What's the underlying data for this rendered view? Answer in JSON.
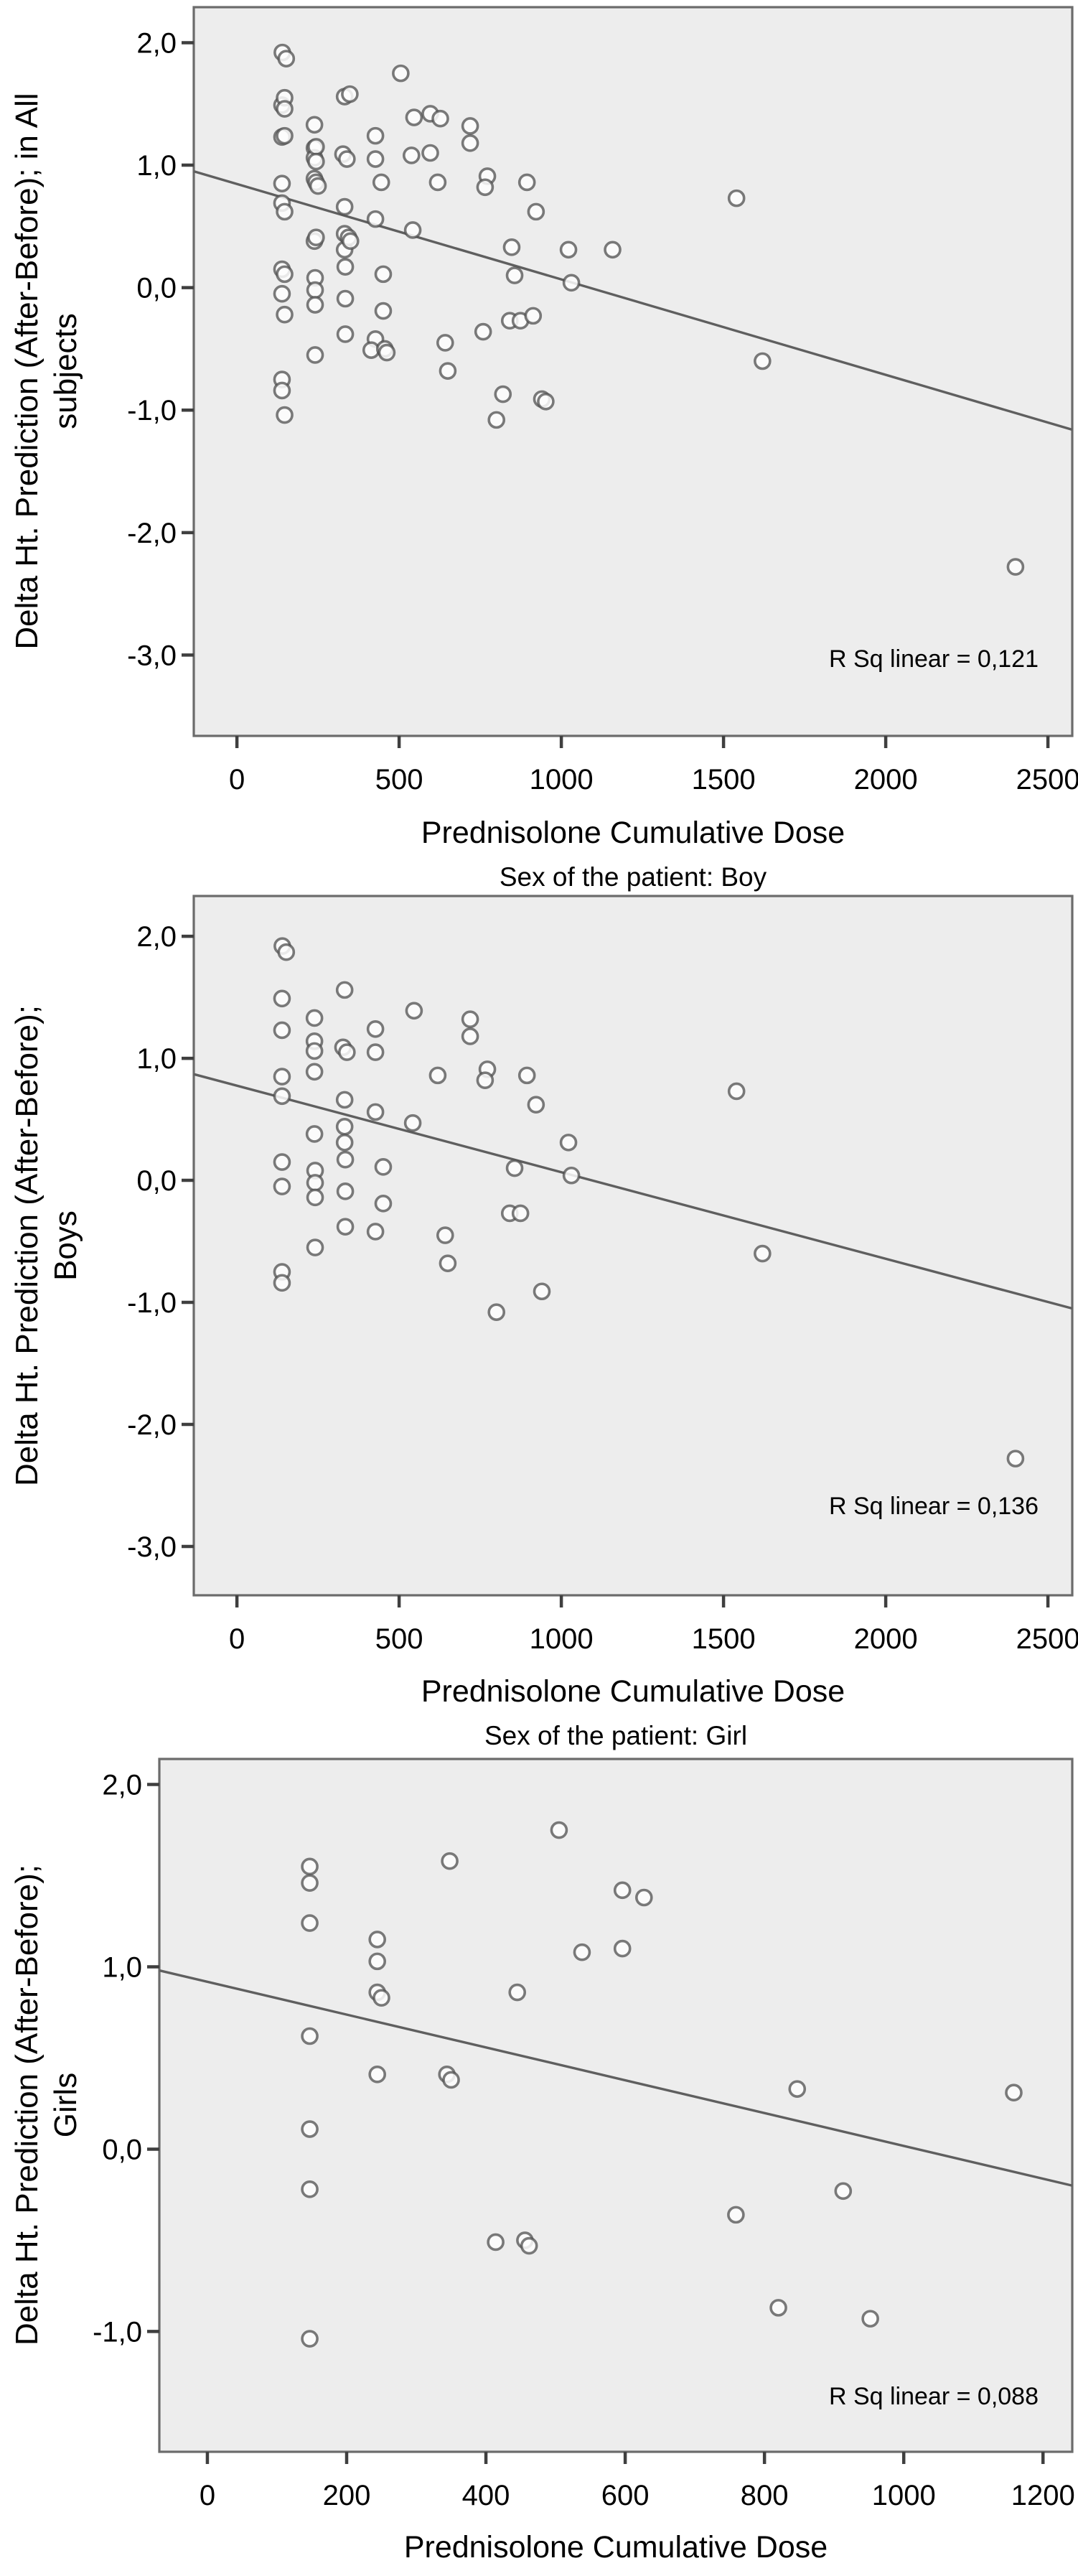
{
  "figure": {
    "x_axis_title": "Prednisolone Cumulative Dose",
    "marker_color": "#4f4f4f",
    "trend_color": "#5f5f5f",
    "plot_bg": "#ededed",
    "frame_color": "#6b6b6b"
  },
  "chart_data": [
    {
      "type": "scatter",
      "title": "",
      "ylabel_lines": [
        "Delta Ht. Prediction (After-Before); in All",
        "subjects"
      ],
      "xlabel": "Prednisolone Cumulative Dose",
      "r_sq_label": "R Sq linear = 0,121",
      "xlim": [
        -133,
        2575
      ],
      "ylim": [
        -3.66,
        2.29
      ],
      "x_ticks": [
        0,
        500,
        1000,
        1500,
        2000,
        2500
      ],
      "x_tick_labels": [
        "0",
        "500",
        "1000",
        "1500",
        "2000",
        "2500"
      ],
      "y_ticks": [
        2,
        1,
        0,
        -1,
        -2,
        -3
      ],
      "y_tick_labels": [
        "2,0",
        "1,0",
        "0,0",
        "-1,0",
        "-2,0",
        "-3,0"
      ],
      "trendline": {
        "x1": -133,
        "y1": 0.95,
        "x2": 2575,
        "y2": -1.16,
        "intercept": 0.85,
        "slope": -0.00078
      },
      "points": [
        [
          140,
          1.92
        ],
        [
          152,
          1.87
        ],
        [
          139,
          1.49
        ],
        [
          332,
          1.56
        ],
        [
          139,
          1.23
        ],
        [
          239,
          1.33
        ],
        [
          546,
          1.39
        ],
        [
          427,
          1.24
        ],
        [
          719,
          1.32
        ],
        [
          719,
          1.18
        ],
        [
          239,
          1.14
        ],
        [
          239,
          1.06
        ],
        [
          327,
          1.09
        ],
        [
          339,
          1.05
        ],
        [
          427,
          1.05
        ],
        [
          239,
          0.89
        ],
        [
          619,
          0.86
        ],
        [
          772,
          0.91
        ],
        [
          765,
          0.82
        ],
        [
          139,
          0.85
        ],
        [
          139,
          0.69
        ],
        [
          332,
          0.66
        ],
        [
          427,
          0.56
        ],
        [
          542,
          0.47
        ],
        [
          239,
          0.38
        ],
        [
          332,
          0.44
        ],
        [
          332,
          0.31
        ],
        [
          894,
          0.86
        ],
        [
          922,
          0.62
        ],
        [
          1022,
          0.31
        ],
        [
          856,
          0.1
        ],
        [
          1031,
          0.04
        ],
        [
          1540,
          0.73
        ],
        [
          139,
          0.15
        ],
        [
          139,
          -0.05
        ],
        [
          241,
          0.08
        ],
        [
          241,
          -0.02
        ],
        [
          241,
          -0.14
        ],
        [
          334,
          0.17
        ],
        [
          334,
          -0.09
        ],
        [
          451,
          0.11
        ],
        [
          451,
          -0.19
        ],
        [
          334,
          -0.38
        ],
        [
          427,
          -0.42
        ],
        [
          241,
          -0.55
        ],
        [
          139,
          -0.75
        ],
        [
          139,
          -0.84
        ],
        [
          642,
          -0.45
        ],
        [
          650,
          -0.68
        ],
        [
          841,
          -0.27
        ],
        [
          874,
          -0.27
        ],
        [
          940,
          -0.91
        ],
        [
          800,
          -1.08
        ],
        [
          1620,
          -0.6
        ],
        [
          2400,
          -2.28
        ],
        [
          147,
          1.55
        ],
        [
          147,
          1.46
        ],
        [
          147,
          1.24
        ],
        [
          244,
          1.15
        ],
        [
          244,
          1.03
        ],
        [
          244,
          0.86
        ],
        [
          250,
          0.83
        ],
        [
          348,
          1.58
        ],
        [
          445,
          0.86
        ],
        [
          147,
          0.62
        ],
        [
          244,
          0.41
        ],
        [
          344,
          0.41
        ],
        [
          350,
          0.38
        ],
        [
          147,
          0.11
        ],
        [
          505,
          1.75
        ],
        [
          596,
          1.42
        ],
        [
          627,
          1.38
        ],
        [
          538,
          1.08
        ],
        [
          596,
          1.1
        ],
        [
          847,
          0.33
        ],
        [
          1158,
          0.31
        ],
        [
          147,
          -0.22
        ],
        [
          414,
          -0.51
        ],
        [
          456,
          -0.5
        ],
        [
          462,
          -0.53
        ],
        [
          147,
          -1.04
        ],
        [
          913,
          -0.23
        ],
        [
          759,
          -0.36
        ],
        [
          820,
          -0.87
        ],
        [
          952,
          -0.93
        ]
      ]
    },
    {
      "type": "scatter",
      "title": "Sex of the patient: Boy",
      "ylabel_lines": [
        "Delta Ht. Prediction (After-Before);",
        "Boys"
      ],
      "xlabel": "Prednisolone Cumulative Dose",
      "r_sq_label": "R Sq linear = 0,136",
      "xlim": [
        -133,
        2575
      ],
      "ylim": [
        -3.4,
        2.33
      ],
      "x_ticks": [
        0,
        500,
        1000,
        1500,
        2000,
        2500
      ],
      "x_tick_labels": [
        "0",
        "500",
        "1000",
        "1500",
        "2000",
        "2500"
      ],
      "y_ticks": [
        2,
        1,
        0,
        -1,
        -2,
        -3
      ],
      "y_tick_labels": [
        "2,0",
        "1,0",
        "0,0",
        "-1,0",
        "-2,0",
        "-3,0"
      ],
      "trendline": {
        "x1": -133,
        "y1": 0.87,
        "x2": 2575,
        "y2": -1.05,
        "intercept": 0.78,
        "slope": -0.00071
      },
      "points": [
        [
          140,
          1.92
        ],
        [
          152,
          1.87
        ],
        [
          139,
          1.49
        ],
        [
          332,
          1.56
        ],
        [
          139,
          1.23
        ],
        [
          239,
          1.33
        ],
        [
          546,
          1.39
        ],
        [
          427,
          1.24
        ],
        [
          719,
          1.32
        ],
        [
          719,
          1.18
        ],
        [
          239,
          1.14
        ],
        [
          239,
          1.06
        ],
        [
          327,
          1.09
        ],
        [
          339,
          1.05
        ],
        [
          427,
          1.05
        ],
        [
          239,
          0.89
        ],
        [
          619,
          0.86
        ],
        [
          772,
          0.91
        ],
        [
          765,
          0.82
        ],
        [
          139,
          0.85
        ],
        [
          139,
          0.69
        ],
        [
          332,
          0.66
        ],
        [
          427,
          0.56
        ],
        [
          542,
          0.47
        ],
        [
          239,
          0.38
        ],
        [
          332,
          0.44
        ],
        [
          332,
          0.31
        ],
        [
          894,
          0.86
        ],
        [
          922,
          0.62
        ],
        [
          1022,
          0.31
        ],
        [
          856,
          0.1
        ],
        [
          1031,
          0.04
        ],
        [
          1540,
          0.73
        ],
        [
          139,
          0.15
        ],
        [
          139,
          -0.05
        ],
        [
          241,
          0.08
        ],
        [
          241,
          -0.02
        ],
        [
          241,
          -0.14
        ],
        [
          334,
          0.17
        ],
        [
          334,
          -0.09
        ],
        [
          451,
          0.11
        ],
        [
          451,
          -0.19
        ],
        [
          334,
          -0.38
        ],
        [
          427,
          -0.42
        ],
        [
          241,
          -0.55
        ],
        [
          139,
          -0.75
        ],
        [
          139,
          -0.84
        ],
        [
          642,
          -0.45
        ],
        [
          650,
          -0.68
        ],
        [
          841,
          -0.27
        ],
        [
          874,
          -0.27
        ],
        [
          940,
          -0.91
        ],
        [
          800,
          -1.08
        ],
        [
          1620,
          -0.6
        ],
        [
          2400,
          -2.28
        ]
      ]
    },
    {
      "type": "scatter",
      "title": "Sex of the patient: Girl",
      "ylabel_lines": [
        "Delta Ht. Prediction (After-Before);",
        "Girls"
      ],
      "xlabel": "Prednisolone Cumulative Dose",
      "r_sq_label": "R Sq linear = 0,088",
      "xlim": [
        -69,
        1242
      ],
      "ylim": [
        -1.66,
        2.14
      ],
      "x_ticks": [
        0,
        200,
        400,
        600,
        800,
        1000,
        1200
      ],
      "x_tick_labels": [
        "0",
        "200",
        "400",
        "600",
        "800",
        "1000",
        "1200"
      ],
      "y_ticks": [
        2,
        1,
        0,
        -1
      ],
      "y_tick_labels": [
        "2,0",
        "1,0",
        "0,0",
        "-1,0"
      ],
      "trendline": {
        "x1": -69,
        "y1": 0.98,
        "x2": 1242,
        "y2": -0.2,
        "intercept": 0.92,
        "slope": -0.0009
      },
      "points": [
        [
          147,
          1.55
        ],
        [
          147,
          1.46
        ],
        [
          147,
          1.24
        ],
        [
          244,
          1.15
        ],
        [
          244,
          1.03
        ],
        [
          244,
          0.86
        ],
        [
          250,
          0.83
        ],
        [
          348,
          1.58
        ],
        [
          445,
          0.86
        ],
        [
          147,
          0.62
        ],
        [
          244,
          0.41
        ],
        [
          344,
          0.41
        ],
        [
          350,
          0.38
        ],
        [
          147,
          0.11
        ],
        [
          505,
          1.75
        ],
        [
          596,
          1.42
        ],
        [
          627,
          1.38
        ],
        [
          538,
          1.08
        ],
        [
          596,
          1.1
        ],
        [
          847,
          0.33
        ],
        [
          1158,
          0.31
        ],
        [
          147,
          -0.22
        ],
        [
          414,
          -0.51
        ],
        [
          456,
          -0.5
        ],
        [
          462,
          -0.53
        ],
        [
          147,
          -1.04
        ],
        [
          913,
          -0.23
        ],
        [
          759,
          -0.36
        ],
        [
          820,
          -0.87
        ],
        [
          952,
          -0.93
        ]
      ]
    }
  ]
}
